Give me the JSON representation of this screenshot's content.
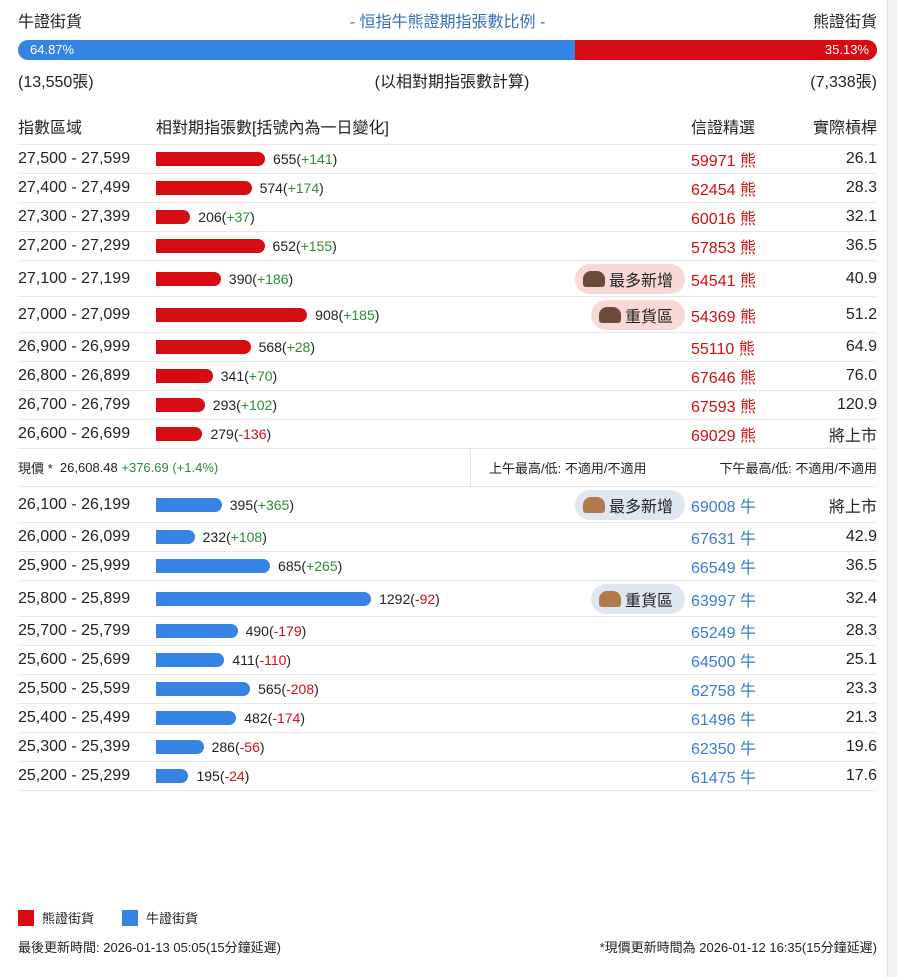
{
  "header": {
    "bull_label": "牛證街貨",
    "title": "- 恒指牛熊證期指張數比例 -",
    "bear_label": "熊證街貨"
  },
  "ratio": {
    "bull_pct": "64.87%",
    "bear_pct": "35.13%",
    "bull_value": 64.87,
    "bear_value": 35.13,
    "bull_count": "(13,550張)",
    "note": "(以相對期指張數計算)",
    "bear_count": "(7,338張)"
  },
  "columns": {
    "range": "指數區域",
    "contracts": "相對期指張數[括號內為一日變化]",
    "picks": "信證精選",
    "strike": "實際槓桿"
  },
  "colors": {
    "bull": "#3584e4",
    "bear": "#d50c12",
    "positive": "#2e8b3a",
    "negative": "#d50c12"
  },
  "bear_rows": [
    {
      "range": "27,500 - 27,599",
      "value": 655,
      "count": "655",
      "change": "+141",
      "code": "59971",
      "type": "熊",
      "leverage": "26.1"
    },
    {
      "range": "27,400 - 27,499",
      "value": 574,
      "count": "574",
      "change": "+174",
      "code": "62454",
      "type": "熊",
      "leverage": "28.3"
    },
    {
      "range": "27,300 - 27,399",
      "value": 206,
      "count": "206",
      "change": "+37",
      "code": "60016",
      "type": "熊",
      "leverage": "32.1"
    },
    {
      "range": "27,200 - 27,299",
      "value": 652,
      "count": "652",
      "change": "+155",
      "code": "57853",
      "type": "熊",
      "leverage": "36.5"
    },
    {
      "range": "27,100 - 27,199",
      "value": 390,
      "count": "390",
      "change": "+186",
      "code": "54541",
      "type": "熊",
      "leverage": "40.9",
      "badge": "最多新增"
    },
    {
      "range": "27,000 - 27,099",
      "value": 908,
      "count": "908",
      "change": "+185",
      "code": "54369",
      "type": "熊",
      "leverage": "51.2",
      "badge": "重貨區"
    },
    {
      "range": "26,900 - 26,999",
      "value": 568,
      "count": "568",
      "change": "+28",
      "code": "55110",
      "type": "熊",
      "leverage": "64.9"
    },
    {
      "range": "26,800 - 26,899",
      "value": 341,
      "count": "341",
      "change": "+70",
      "code": "67646",
      "type": "熊",
      "leverage": "76.0"
    },
    {
      "range": "26,700 - 26,799",
      "value": 293,
      "count": "293",
      "change": "+102",
      "code": "67593",
      "type": "熊",
      "leverage": "120.9"
    },
    {
      "range": "26,600 - 26,699",
      "value": 279,
      "count": "279",
      "change": "-136",
      "code": "69029",
      "type": "熊",
      "leverage": "將上市"
    }
  ],
  "price": {
    "label": "現價 *",
    "value": "26,608.48",
    "change": "+376.69 (+1.4%)",
    "am": "上午最高/低: 不適用/不適用",
    "pm": "下午最高/低: 不適用/不適用"
  },
  "bull_rows": [
    {
      "range": "26,100 - 26,199",
      "value": 395,
      "count": "395",
      "change": "+365",
      "code": "69008",
      "type": "牛",
      "leverage": "將上市",
      "badge": "最多新增"
    },
    {
      "range": "26,000 - 26,099",
      "value": 232,
      "count": "232",
      "change": "+108",
      "code": "67631",
      "type": "牛",
      "leverage": "42.9"
    },
    {
      "range": "25,900 - 25,999",
      "value": 685,
      "count": "685",
      "change": "+265",
      "code": "66549",
      "type": "牛",
      "leverage": "36.5"
    },
    {
      "range": "25,800 - 25,899",
      "value": 1292,
      "count": "1292",
      "change": "-92",
      "code": "63997",
      "type": "牛",
      "leverage": "32.4",
      "badge": "重貨區"
    },
    {
      "range": "25,700 - 25,799",
      "value": 490,
      "count": "490",
      "change": "-179",
      "code": "65249",
      "type": "牛",
      "leverage": "28.3"
    },
    {
      "range": "25,600 - 25,699",
      "value": 411,
      "count": "411",
      "change": "-110",
      "code": "64500",
      "type": "牛",
      "leverage": "25.1"
    },
    {
      "range": "25,500 - 25,599",
      "value": 565,
      "count": "565",
      "change": "-208",
      "code": "62758",
      "type": "牛",
      "leverage": "23.3"
    },
    {
      "range": "25,400 - 25,499",
      "value": 482,
      "count": "482",
      "change": "-174",
      "code": "61496",
      "type": "牛",
      "leverage": "21.3"
    },
    {
      "range": "25,300 - 25,399",
      "value": 286,
      "count": "286",
      "change": "-56",
      "code": "62350",
      "type": "牛",
      "leverage": "19.6"
    },
    {
      "range": "25,200 - 25,299",
      "value": 195,
      "count": "195",
      "change": "-24",
      "code": "61475",
      "type": "牛",
      "leverage": "17.6"
    }
  ],
  "legend": {
    "bear": "熊證街貨",
    "bull": "牛證街貨"
  },
  "footer": {
    "updated": "最後更新時間: 2026-01-13 05:05(15分鐘延遲)",
    "price_updated": "*現價更新時間為 2026-01-12 16:35(15分鐘延遲)"
  }
}
